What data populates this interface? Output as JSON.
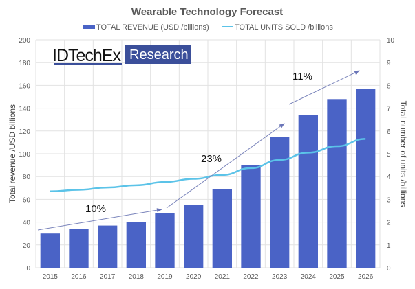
{
  "chart_data": {
    "type": "bar+line",
    "title": "Wearable Technology Forecast",
    "categories": [
      "2015",
      "2016",
      "2017",
      "2018",
      "2019",
      "2020",
      "2021",
      "2022",
      "2023",
      "2024",
      "2025",
      "2026"
    ],
    "series": [
      {
        "name": "TOTAL REVENUE (USD /billions)",
        "type": "bar",
        "axis": "left",
        "color": "#4a63c6",
        "values": [
          30,
          34,
          37,
          40,
          48,
          55,
          69,
          90,
          115,
          134,
          148,
          157
        ]
      },
      {
        "name": "TOTAL UNITS SOLD /billions",
        "type": "line",
        "axis": "right",
        "color": "#5bc3e8",
        "values": [
          3.35,
          3.42,
          3.52,
          3.62,
          3.76,
          3.9,
          4.07,
          4.37,
          4.73,
          5.05,
          5.33,
          5.65
        ]
      }
    ],
    "ylabel": "Total revenue /USD billions",
    "y2label": "Total number of units /billions",
    "ylim": [
      0,
      200
    ],
    "y2lim": [
      0,
      10
    ],
    "yticks": [
      "0",
      "20",
      "40",
      "60",
      "80",
      "100",
      "120",
      "140",
      "160",
      "180",
      "200"
    ],
    "y2ticks": [
      "0",
      "1",
      "2",
      "3",
      "4",
      "5",
      "6",
      "7",
      "8",
      "9",
      "10"
    ],
    "grid": true,
    "legend": "top",
    "annotations": [
      "10%",
      "23%",
      "11%"
    ]
  },
  "logo": {
    "left": "IDTechEx",
    "right": "Research",
    "color": "#3b4f9a"
  }
}
